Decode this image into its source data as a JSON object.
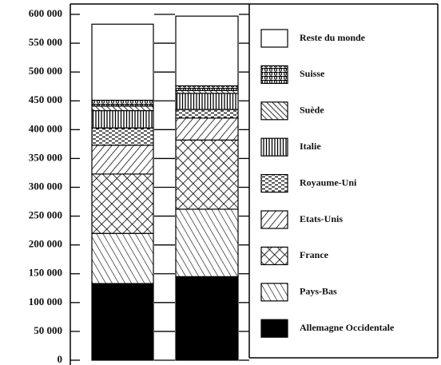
{
  "chart_data": {
    "type": "stacked_bar",
    "categories": [
      null,
      null
    ],
    "ylim": [
      0,
      600000
    ],
    "yticks": [
      {
        "value": 0,
        "label": "0"
      },
      {
        "value": 50000,
        "label": "50 000"
      },
      {
        "value": 100000,
        "label": "100 000"
      },
      {
        "value": 150000,
        "label": "150 000"
      },
      {
        "value": 200000,
        "label": "200 000"
      },
      {
        "value": 250000,
        "label": "250 000"
      },
      {
        "value": 300000,
        "label": "300 000"
      },
      {
        "value": 350000,
        "label": "350 000"
      },
      {
        "value": 400000,
        "label": "400 000"
      },
      {
        "value": 450000,
        "label": "450 000"
      },
      {
        "value": 500000,
        "label": "500 000"
      },
      {
        "value": 550000,
        "label": "550 000"
      },
      {
        "value": 600000,
        "label": "600 000"
      }
    ],
    "series": [
      {
        "name": "Allemagne Occidentale",
        "pattern": "solid",
        "values": [
          133000,
          145000
        ]
      },
      {
        "name": "Pays-Bas",
        "pattern": "diag",
        "values": [
          87000,
          117000
        ]
      },
      {
        "name": "France",
        "pattern": "cross",
        "values": [
          103000,
          120000
        ]
      },
      {
        "name": "Etats-Unis",
        "pattern": "back",
        "values": [
          50000,
          38000
        ]
      },
      {
        "name": "Royaume-Uni",
        "pattern": "dash",
        "values": [
          30000,
          15000
        ]
      },
      {
        "name": "Italie",
        "pattern": "vert",
        "values": [
          30000,
          28000
        ]
      },
      {
        "name": "Suède",
        "pattern": "diag2",
        "values": [
          8000,
          5000
        ]
      },
      {
        "name": "Suisse",
        "pattern": "wave",
        "values": [
          10000,
          8000
        ]
      },
      {
        "name": "Reste du monde",
        "pattern": "blank",
        "values": [
          132000,
          121000
        ]
      }
    ]
  }
}
